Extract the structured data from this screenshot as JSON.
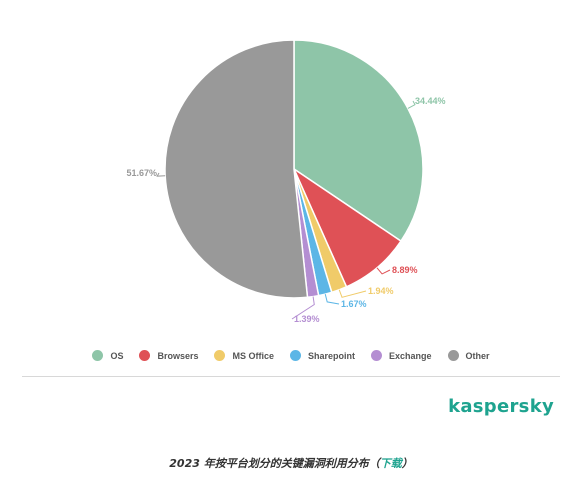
{
  "chart_data": {
    "type": "pie",
    "series": [
      {
        "name": "OS",
        "value": 34.44,
        "label": "34.44%",
        "color": "#8ec5a8"
      },
      {
        "name": "Browsers",
        "value": 8.89,
        "label": "8.89%",
        "color": "#df5156"
      },
      {
        "name": "MS Office",
        "value": 1.94,
        "label": "1.94%",
        "color": "#f0cb69"
      },
      {
        "name": "Sharepoint",
        "value": 1.67,
        "label": "1.67%",
        "color": "#5cb6e6"
      },
      {
        "name": "Exchange",
        "value": 1.39,
        "label": "1.39%",
        "color": "#b48ed2"
      },
      {
        "name": "Other",
        "value": 51.67,
        "label": "51.67%",
        "color": "#999999"
      }
    ],
    "legend_position": "bottom"
  },
  "brand": {
    "name": "kaspersky"
  },
  "caption": {
    "text": "2023 年按平台划分的关键漏洞利用分布",
    "open_paren": "（",
    "link": "下载",
    "close_paren": "）"
  }
}
